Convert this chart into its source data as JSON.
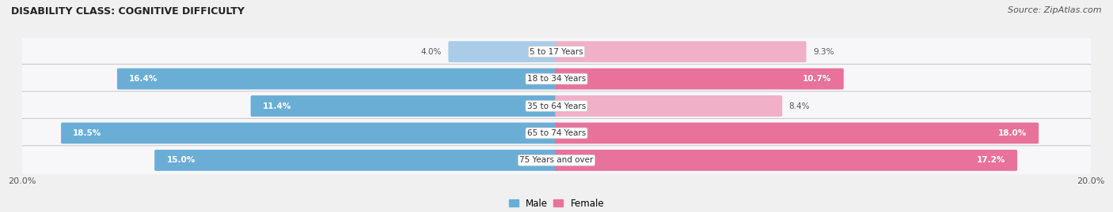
{
  "title": "DISABILITY CLASS: COGNITIVE DIFFICULTY",
  "source": "Source: ZipAtlas.com",
  "categories": [
    "5 to 17 Years",
    "18 to 34 Years",
    "35 to 64 Years",
    "65 to 74 Years",
    "75 Years and over"
  ],
  "male_values": [
    4.0,
    16.4,
    11.4,
    18.5,
    15.0
  ],
  "female_values": [
    9.3,
    10.7,
    8.4,
    18.0,
    17.2
  ],
  "max_val": 20.0,
  "male_color_dark": "#6aaed6",
  "male_color_light": "#aacce8",
  "female_color_dark": "#e8729a",
  "female_color_light": "#f0b0c8",
  "row_bg_colors": [
    "#f0f0f0",
    "#e0e0e8",
    "#f0f0f0",
    "#e0e0e8",
    "#f0f0f0"
  ],
  "title_fontsize": 9,
  "source_fontsize": 8,
  "bar_label_fontsize": 7.5,
  "cat_label_fontsize": 7.5,
  "male_threshold": 10.0,
  "female_threshold": 10.0
}
